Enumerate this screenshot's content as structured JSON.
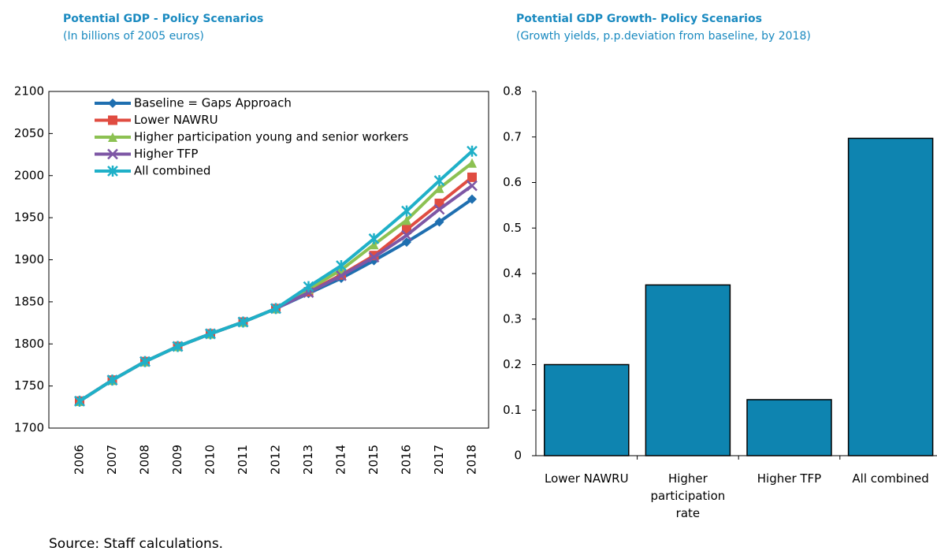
{
  "chart_data": [
    {
      "type": "line",
      "title": "Potential GDP - Policy Scenarios",
      "subtitle": "(In billions of 2005 euros)",
      "categories": [
        "2006",
        "2007",
        "2008",
        "2009",
        "2010",
        "2011",
        "2012",
        "2013",
        "2014",
        "2015",
        "2016",
        "2017",
        "2018"
      ],
      "series": [
        {
          "name": "Baseline = Gaps Approach",
          "color": "#1f6fb0",
          "marker": "diamond",
          "values": [
            1732,
            1757,
            1779,
            1797,
            1812,
            1826,
            1842,
            1860,
            1878,
            1899,
            1921,
            1945,
            1972
          ]
        },
        {
          "name": "Lower NAWRU",
          "color": "#e04c41",
          "marker": "square",
          "values": [
            1732,
            1757,
            1779,
            1797,
            1812,
            1826,
            1842,
            1862,
            1882,
            1905,
            1936,
            1967,
            1998
          ]
        },
        {
          "name": "Higher participation young and senior workers",
          "color": "#8cc152",
          "marker": "triangle",
          "values": [
            1732,
            1757,
            1779,
            1797,
            1812,
            1826,
            1842,
            1865,
            1888,
            1918,
            1947,
            1985,
            2015
          ]
        },
        {
          "name": "Higher TFP",
          "color": "#7e57a5",
          "marker": "x",
          "values": [
            1732,
            1757,
            1779,
            1797,
            1812,
            1826,
            1842,
            1861,
            1881,
            1903,
            1929,
            1960,
            1988
          ]
        },
        {
          "name": "All combined",
          "color": "#1fb0c8",
          "marker": "star",
          "values": [
            1732,
            1757,
            1779,
            1797,
            1812,
            1826,
            1842,
            1868,
            1893,
            1925,
            1958,
            1994,
            2029
          ]
        }
      ],
      "ylim": [
        1700,
        2100
      ],
      "yticks": [
        1700,
        1750,
        1800,
        1850,
        1900,
        1950,
        2000,
        2050,
        2100
      ],
      "legend": "upper left"
    },
    {
      "type": "bar",
      "title": "Potential GDP Growth- Policy Scenarios",
      "subtitle": "(Growth yields, p.p.deviation from baseline, by 2018)",
      "categories": [
        "Lower NAWRU",
        "Higher participation rate",
        "Higher TFP",
        "All combined"
      ],
      "values": [
        0.2,
        0.375,
        0.123,
        0.697
      ],
      "color": "#0e84b0",
      "ylim": [
        0,
        0.8
      ],
      "yticks": [
        0,
        0.1,
        0.2,
        0.3,
        0.4,
        0.5,
        0.6,
        0.7,
        0.8
      ]
    }
  ],
  "source": "Source: Staff calculations."
}
